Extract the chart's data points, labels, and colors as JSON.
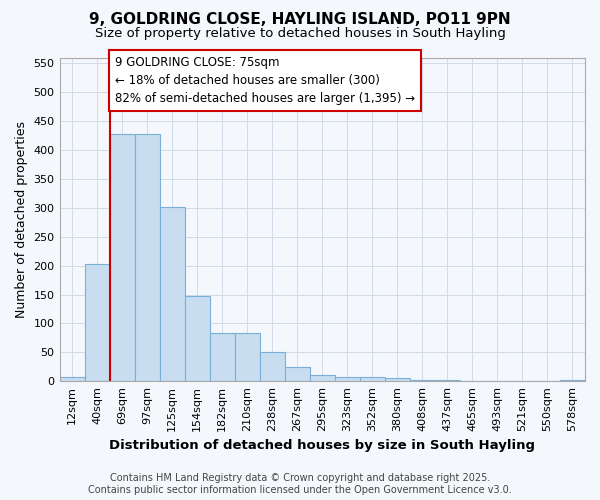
{
  "title_line1": "9, GOLDRING CLOSE, HAYLING ISLAND, PO11 9PN",
  "title_line2": "Size of property relative to detached houses in South Hayling",
  "xlabel": "Distribution of detached houses by size in South Hayling",
  "ylabel": "Number of detached properties",
  "categories": [
    "12sqm",
    "40sqm",
    "69sqm",
    "97sqm",
    "125sqm",
    "154sqm",
    "182sqm",
    "210sqm",
    "238sqm",
    "267sqm",
    "295sqm",
    "323sqm",
    "352sqm",
    "380sqm",
    "408sqm",
    "437sqm",
    "465sqm",
    "493sqm",
    "521sqm",
    "550sqm",
    "578sqm"
  ],
  "values": [
    8,
    203,
    428,
    428,
    302,
    148,
    83,
    83,
    51,
    25,
    11,
    8,
    7,
    5,
    3,
    2,
    1,
    0,
    0,
    0,
    2
  ],
  "bar_color": "#c8ddf0",
  "bar_edge_color": "#7ab0d8",
  "grid_color": "#d0dce8",
  "bg_color": "#f4f7fb",
  "vline_color": "#cc0000",
  "vline_x": 1.5,
  "annotation_text": "9 GOLDRING CLOSE: 75sqm\n← 18% of detached houses are smaller (300)\n82% of semi-detached houses are larger (1,395) →",
  "ann_box_facecolor": "#ffffff",
  "ann_box_edgecolor": "#cc0000",
  "ylim_max": 560,
  "yticks": [
    0,
    50,
    100,
    150,
    200,
    250,
    300,
    350,
    400,
    450,
    500,
    550
  ],
  "footer": "Contains HM Land Registry data © Crown copyright and database right 2025.\nContains public sector information licensed under the Open Government Licence v3.0.",
  "title_fontsize": 11,
  "subtitle_fontsize": 9.5,
  "ylabel_fontsize": 9,
  "xlabel_fontsize": 9.5,
  "tick_fontsize": 8,
  "ann_fontsize": 8.5,
  "footer_fontsize": 7
}
